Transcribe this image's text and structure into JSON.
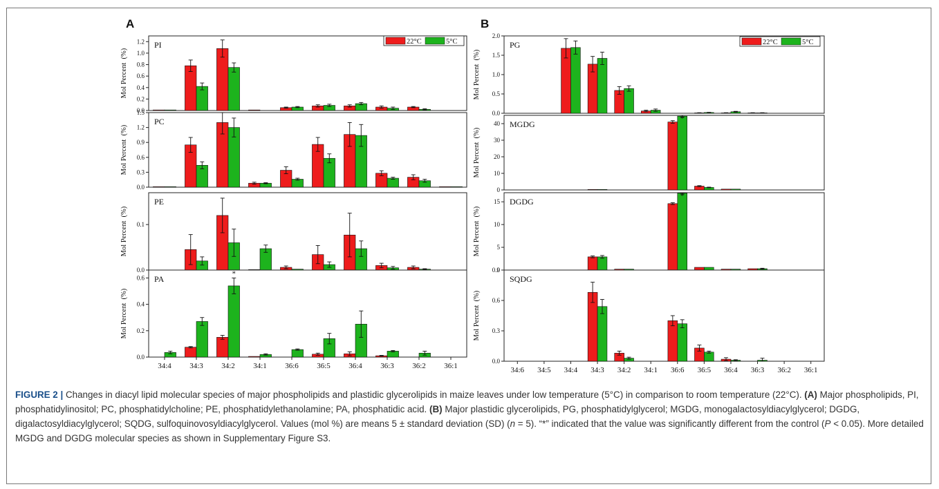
{
  "colors": {
    "c22": "#ee1c1c",
    "c5": "#1db31d",
    "axis": "#222222"
  },
  "legend": [
    "22°C",
    "5°C"
  ],
  "ylabel": "Mol Percent  (%)",
  "chart_data": [
    {
      "panel": "A",
      "name": "PI",
      "type": "bar",
      "categories": [
        "34:4",
        "34:3",
        "34:2",
        "34:1",
        "36:6",
        "36:5",
        "36:4",
        "36:3",
        "36:2",
        "36:1"
      ],
      "ylim": [
        0,
        1.3
      ],
      "yticks": [
        "0.0",
        "0.2",
        "0.4",
        "0.6",
        "0.8",
        "1.0",
        "1.2"
      ],
      "tick_values": [
        0,
        0.2,
        0.4,
        0.6,
        0.8,
        1.0,
        1.2
      ],
      "series": [
        {
          "name": "22°C",
          "values": [
            0.01,
            0.78,
            1.08,
            0.01,
            0.05,
            0.08,
            0.08,
            0.06,
            0.06,
            0
          ],
          "errors": [
            0,
            0.1,
            0.15,
            0,
            0.01,
            0.02,
            0.02,
            0.02,
            0.01,
            0
          ]
        },
        {
          "name": "5°C",
          "values": [
            0.01,
            0.42,
            0.75,
            0,
            0.06,
            0.09,
            0.12,
            0.04,
            0.02,
            0
          ],
          "errors": [
            0,
            0.06,
            0.08,
            0,
            0.01,
            0.02,
            0.02,
            0.02,
            0.01,
            0
          ]
        }
      ],
      "sig": [],
      "legend": true
    },
    {
      "panel": "A",
      "name": "PC",
      "type": "bar",
      "categories": [
        "34:4",
        "34:3",
        "34:2",
        "34:1",
        "36:6",
        "36:5",
        "36:4",
        "36:3",
        "36:2",
        "36:1"
      ],
      "ylim": [
        0,
        1.5
      ],
      "yticks": [
        "0.0",
        "0.3",
        "0.6",
        "0.9",
        "1.2",
        "1.5"
      ],
      "tick_values": [
        0,
        0.3,
        0.6,
        0.9,
        1.2,
        1.5
      ],
      "series": [
        {
          "name": "22°C",
          "values": [
            0.01,
            0.85,
            1.3,
            0.08,
            0.34,
            0.86,
            1.06,
            0.28,
            0.2,
            0.01
          ],
          "errors": [
            0,
            0.15,
            0.23,
            0.02,
            0.07,
            0.14,
            0.24,
            0.05,
            0.05,
            0
          ]
        },
        {
          "name": "5°C",
          "values": [
            0.01,
            0.44,
            1.2,
            0.08,
            0.16,
            0.58,
            1.04,
            0.18,
            0.13,
            0.01
          ],
          "errors": [
            0,
            0.07,
            0.19,
            0.01,
            0.02,
            0.09,
            0.22,
            0.02,
            0.03,
            0
          ]
        }
      ],
      "sig": [],
      "legend": false
    },
    {
      "panel": "A",
      "name": "PE",
      "type": "bar",
      "categories": [
        "34:4",
        "34:3",
        "34:2",
        "34:1",
        "36:6",
        "36:5",
        "36:4",
        "36:3",
        "36:2",
        "36:1"
      ],
      "ylim": [
        0,
        0.17
      ],
      "yticks": [
        "0.0",
        "0.1"
      ],
      "tick_values": [
        0,
        0.1
      ],
      "series": [
        {
          "name": "22°C",
          "values": [
            0,
            0.045,
            0.12,
            0.001,
            0.006,
            0.034,
            0.077,
            0.01,
            0.006,
            0
          ],
          "errors": [
            0,
            0.033,
            0.038,
            0,
            0.003,
            0.02,
            0.048,
            0.005,
            0.003,
            0
          ]
        },
        {
          "name": "5°C",
          "values": [
            0,
            0.02,
            0.06,
            0.047,
            0.002,
            0.012,
            0.047,
            0.005,
            0.002,
            0
          ],
          "errors": [
            0,
            0.009,
            0.03,
            0.008,
            0,
            0.006,
            0.017,
            0.003,
            0.001,
            0
          ]
        }
      ],
      "sig": [],
      "legend": false
    },
    {
      "panel": "A",
      "name": "PA",
      "type": "bar",
      "categories": [
        "34:4",
        "34:3",
        "34:2",
        "34:1",
        "36:6",
        "36:5",
        "36:4",
        "36:3",
        "36:2",
        "36:1"
      ],
      "ylim": [
        0,
        0.66
      ],
      "yticks": [
        "0.0",
        "0.2",
        "0.4",
        "0.6"
      ],
      "tick_values": [
        0,
        0.2,
        0.4,
        0.6
      ],
      "series": [
        {
          "name": "22°C",
          "values": [
            0,
            0.075,
            0.15,
            0.005,
            0,
            0.022,
            0.025,
            0.01,
            0,
            0
          ],
          "errors": [
            0,
            0.005,
            0.015,
            0,
            0,
            0.008,
            0.015,
            0.003,
            0,
            0
          ]
        },
        {
          "name": "5°C",
          "values": [
            0.035,
            0.27,
            0.54,
            0.02,
            0.057,
            0.14,
            0.25,
            0.045,
            0.03,
            0
          ],
          "errors": [
            0.01,
            0.03,
            0.06,
            0.005,
            0.005,
            0.04,
            0.1,
            0.005,
            0.015,
            0
          ]
        }
      ],
      "sig": [
        {
          "category": 2,
          "series": 1,
          "text": "*"
        }
      ],
      "legend": false,
      "xticks": true
    },
    {
      "panel": "B",
      "name": "PG",
      "type": "bar",
      "categories": [
        "34:6",
        "34:5",
        "34:4",
        "34:3",
        "34:2",
        "34:1",
        "36:6",
        "36:5",
        "36:4",
        "36:3",
        "36:2",
        "36:1"
      ],
      "ylim": [
        0,
        2.0
      ],
      "yticks": [
        "0.0",
        "0.5",
        "1.0",
        "1.5",
        "2.0"
      ],
      "tick_values": [
        0,
        0.5,
        1.0,
        1.5,
        2.0
      ],
      "series": [
        {
          "name": "22°C",
          "values": [
            0,
            0,
            1.68,
            1.27,
            0.59,
            0.06,
            0,
            0.01,
            0.01,
            0.01,
            0,
            0
          ],
          "errors": [
            0,
            0,
            0.25,
            0.2,
            0.1,
            0.02,
            0,
            0.005,
            0.005,
            0.005,
            0,
            0
          ]
        },
        {
          "name": "5°C",
          "values": [
            0,
            0,
            1.7,
            1.42,
            0.64,
            0.08,
            0,
            0.02,
            0.04,
            0.01,
            0,
            0
          ],
          "errors": [
            0,
            0,
            0.17,
            0.16,
            0.07,
            0.03,
            0,
            0.005,
            0.01,
            0.005,
            0,
            0
          ]
        }
      ],
      "sig": [],
      "legend": true
    },
    {
      "panel": "B",
      "name": "MGDG",
      "type": "bar",
      "categories": [
        "34:6",
        "34:5",
        "34:4",
        "34:3",
        "34:2",
        "34:1",
        "36:6",
        "36:5",
        "36:4",
        "36:3",
        "36:2",
        "36:1"
      ],
      "ylim": [
        0,
        45
      ],
      "yticks": [
        "0",
        "10",
        "20",
        "30",
        "40"
      ],
      "tick_values": [
        0,
        10,
        20,
        30,
        40
      ],
      "series": [
        {
          "name": "22°C",
          "values": [
            0,
            0,
            0,
            0.3,
            0,
            0,
            41,
            2.3,
            0.5,
            0,
            0,
            0
          ],
          "errors": [
            0,
            0,
            0,
            0,
            0,
            0,
            0.8,
            0.3,
            0,
            0,
            0,
            0
          ]
        },
        {
          "name": "5°C",
          "values": [
            0,
            0,
            0,
            0.3,
            0,
            0,
            44.5,
            1.5,
            0.5,
            0,
            0,
            0
          ],
          "errors": [
            0,
            0,
            0,
            0,
            0,
            0,
            0.6,
            0.2,
            0,
            0,
            0,
            0
          ]
        }
      ],
      "sig": [
        {
          "category": 6,
          "series": 1,
          "text": "*"
        }
      ],
      "legend": false
    },
    {
      "panel": "B",
      "name": "DGDG",
      "type": "bar",
      "categories": [
        "34:6",
        "34:5",
        "34:4",
        "34:3",
        "34:2",
        "34:1",
        "36:6",
        "36:5",
        "36:4",
        "36:3",
        "36:2",
        "36:1"
      ],
      "ylim": [
        0,
        17
      ],
      "yticks": [
        "0",
        "5",
        "10",
        "15"
      ],
      "tick_values": [
        0,
        5,
        10,
        15
      ],
      "series": [
        {
          "name": "22°C",
          "values": [
            0,
            0,
            0,
            2.9,
            0.2,
            0,
            14.6,
            0.6,
            0.2,
            0.3,
            0,
            0
          ],
          "errors": [
            0,
            0,
            0,
            0.2,
            0,
            0,
            0.2,
            0,
            0,
            0,
            0,
            0
          ]
        },
        {
          "name": "5°C",
          "values": [
            0,
            0,
            0,
            2.9,
            0.2,
            0,
            16.9,
            0.6,
            0.2,
            0.3,
            0,
            0
          ],
          "errors": [
            0,
            0,
            0,
            0.3,
            0,
            0,
            0.2,
            0,
            0,
            0.1,
            0,
            0
          ]
        }
      ],
      "sig": [
        {
          "category": 6,
          "series": 1,
          "text": "*"
        }
      ],
      "legend": false
    },
    {
      "panel": "B",
      "name": "SQDG",
      "type": "bar",
      "categories": [
        "34:6",
        "34:5",
        "34:4",
        "34:3",
        "34:2",
        "34:1",
        "36:6",
        "36:5",
        "36:4",
        "36:3",
        "36:2",
        "36:1"
      ],
      "ylim": [
        0,
        0.9
      ],
      "yticks": [
        "0.0",
        "0.3",
        "0.6",
        "0.9"
      ],
      "tick_values": [
        0,
        0.3,
        0.6,
        0.9
      ],
      "series": [
        {
          "name": "22°C",
          "values": [
            0,
            0,
            0,
            0.68,
            0.08,
            0,
            0.4,
            0.13,
            0.02,
            0,
            0,
            0
          ],
          "errors": [
            0,
            0,
            0,
            0.1,
            0.02,
            0,
            0.05,
            0.03,
            0.015,
            0,
            0,
            0
          ]
        },
        {
          "name": "5°C",
          "values": [
            0,
            0,
            0,
            0.54,
            0.03,
            0,
            0.37,
            0.09,
            0.01,
            0.01,
            0,
            0
          ],
          "errors": [
            0,
            0,
            0,
            0.07,
            0.01,
            0,
            0.04,
            0.01,
            0.005,
            0.02,
            0,
            0
          ]
        }
      ],
      "sig": [],
      "legend": false,
      "xticks": true
    }
  ],
  "caption": {
    "fig_label": "FIGURE 2 |",
    "t1": " Changes in diacyl lipid molecular species of major phospholipids and plastidic glycerolipids in maize leaves under low temperature (5°C) in comparison to room temperature (22°C). ",
    "a_label": "(A)",
    "t2": " Major phospholipids, PI, phosphatidylinositol; PC, phosphatidylcholine; PE, phosphatidylethanolamine; PA, phosphatidic acid. ",
    "b_label": "(B)",
    "t3": " Major plastidic glycerolipids, PG, phosphatidylglycerol; MGDG, monogalactosyldiacylglycerol; DGDG, digalactosyldiacylglycerol; SQDG, sulfoquinovosyldiacylglycerol. Values (mol %) are means 5 ± standard deviation (SD) (",
    "n_italic": "n",
    "t4": " = 5). “*” indicated that the value was significantly different from the control (",
    "p_italic": "P",
    "t5": " < 0.05). More detailed MGDG and DGDG molecular species as shown in Supplementary Figure S3."
  },
  "panel_labels": {
    "a": "A",
    "b": "B"
  }
}
